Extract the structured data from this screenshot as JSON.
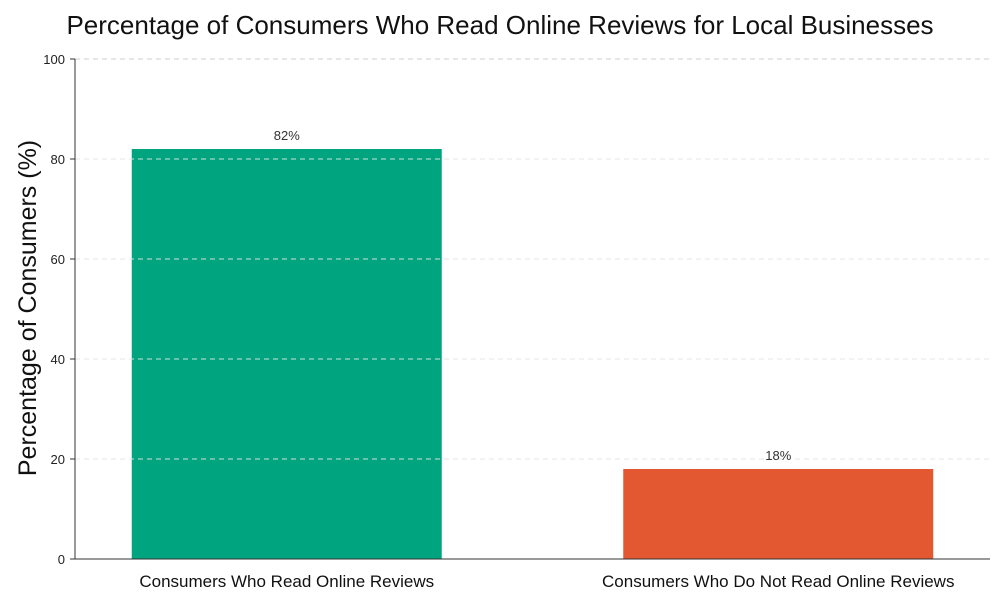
{
  "chart_data": {
    "type": "bar",
    "title": "Percentage of Consumers Who Read Online Reviews for Local Businesses",
    "xlabel": "",
    "ylabel": "Percentage of Consumers (%)",
    "categories": [
      "Consumers Who Read Online Reviews",
      "Consumers Who Do Not Read Online Reviews"
    ],
    "values": [
      82,
      18
    ],
    "value_labels": [
      "82%",
      "18%"
    ],
    "colors": [
      "#00a57f",
      "#e35830"
    ],
    "ylim": [
      0,
      100
    ],
    "yticks": [
      0,
      20,
      40,
      60,
      80,
      100
    ],
    "ytick_labels": [
      "0",
      "20",
      "40",
      "60",
      "80",
      "100"
    ],
    "grid": true,
    "grid_style": "dashed horizontal"
  }
}
